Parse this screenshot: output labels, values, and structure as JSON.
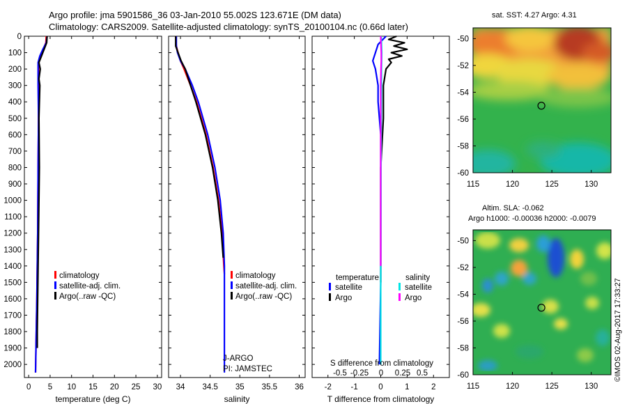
{
  "title": {
    "line1": "Argo profile: jma 5901586_36 03-Jan-2010 55.002S 123.671E (DM data)",
    "line2": "Climatology: CARS2009. Satellite-adjusted climatology: synTS_20100104.nc (0.66d later)"
  },
  "colors": {
    "climatology": "#ff0000",
    "satellite": "#0000ff",
    "argo": "#000000",
    "sal_satellite": "#00e5e5",
    "sal_argo": "#ff00ff"
  },
  "chart_data": [
    {
      "type": "line",
      "name": "temperature-profile",
      "xlabel": "temperature (deg C)",
      "ylabel": "",
      "xlim": [
        -1,
        31
      ],
      "ylim": [
        2080,
        0
      ],
      "xticks": [
        "0",
        "5",
        "10",
        "15",
        "20",
        "25",
        "30"
      ],
      "yticks": [
        "0",
        "100",
        "200",
        "300",
        "400",
        "500",
        "600",
        "700",
        "800",
        "900",
        "1000",
        "1100",
        "1200",
        "1300",
        "1400",
        "1500",
        "1600",
        "1700",
        "1800",
        "1900",
        "2000"
      ],
      "series": [
        {
          "name": "climatology",
          "depth": [
            0,
            40,
            80,
            120,
            160,
            200,
            300,
            500,
            800,
            1200,
            1600,
            2050
          ],
          "values": [
            4.1,
            4.0,
            3.4,
            2.8,
            2.4,
            2.3,
            2.3,
            2.3,
            2.2,
            2.1,
            1.9,
            1.6
          ]
        },
        {
          "name": "satellite-adj. clim.",
          "depth": [
            0,
            40,
            80,
            120,
            160,
            200,
            300,
            500,
            800,
            1200,
            1600,
            2050
          ],
          "values": [
            4.3,
            4.1,
            3.3,
            2.6,
            2.2,
            2.2,
            2.2,
            2.3,
            2.2,
            2.1,
            1.9,
            1.6
          ]
        },
        {
          "name": "Argo(..raw -QC)",
          "depth": [
            0,
            40,
            80,
            120,
            160,
            200,
            260,
            300,
            500,
            800,
            1000,
            1200,
            1400,
            1600,
            1800,
            1900
          ],
          "values": [
            4.3,
            4.2,
            3.6,
            3.0,
            2.4,
            2.7,
            2.4,
            2.6,
            2.4,
            2.5,
            2.4,
            2.3,
            2.2,
            2.1,
            2.0,
            2.0
          ]
        }
      ],
      "legend": [
        "climatology",
        "satellite-adj. clim.",
        "Argo(..raw -QC)"
      ]
    },
    {
      "type": "line",
      "name": "salinity-profile",
      "xlabel": "salinity",
      "xlim": [
        33.8,
        36.1
      ],
      "ylim": [
        2080,
        0
      ],
      "xticks": [
        "34",
        "34.5",
        "35",
        "35.5",
        "36"
      ],
      "series": [
        {
          "name": "climatology",
          "depth": [
            0,
            60,
            100,
            150,
            200,
            300,
            400,
            600,
            800,
            1000,
            1200,
            1400,
            1450
          ],
          "values": [
            33.92,
            33.93,
            33.96,
            34.0,
            34.06,
            34.17,
            34.27,
            34.43,
            34.55,
            34.64,
            34.7,
            34.73,
            34.74
          ]
        },
        {
          "name": "satellite-adj. clim.",
          "depth": [
            0,
            60,
            100,
            150,
            200,
            300,
            400,
            600,
            800,
            1000,
            1200,
            1400,
            1600,
            2050
          ],
          "values": [
            33.93,
            33.93,
            33.95,
            34.0,
            34.08,
            34.2,
            34.3,
            34.46,
            34.58,
            34.67,
            34.72,
            34.74,
            34.74,
            34.74
          ]
        },
        {
          "name": "Argo(..raw -QC)",
          "depth": [
            0,
            60,
            100,
            150,
            200,
            300,
            400,
            600,
            800,
            1000,
            1200,
            1350
          ],
          "values": [
            33.92,
            33.92,
            33.96,
            34.01,
            34.08,
            34.17,
            34.26,
            34.42,
            34.54,
            34.63,
            34.69,
            34.72
          ]
        }
      ],
      "annotation": [
        "J-ARGO",
        "PI: JAMSTEC"
      ],
      "legend": [
        "climatology",
        "satellite-adj. clim.",
        "Argo(..raw -QC)"
      ]
    },
    {
      "type": "line",
      "name": "difference-profile",
      "xlabel": "T difference from climatology",
      "xlabel_top": "S difference from climatology",
      "xlim": [
        -2.6,
        2.6
      ],
      "ylim": [
        2080,
        0
      ],
      "xticks": [
        "-2",
        "-1",
        "0",
        "1",
        "2"
      ],
      "xticks_top": [
        "-0.5",
        "-0.25",
        "0",
        "0.25",
        "0.5"
      ],
      "series": [
        {
          "name": "temperature satellite",
          "depth": [
            0,
            50,
            100,
            150,
            200,
            300,
            400,
            600,
            800,
            1000,
            1500,
            2000
          ],
          "values": [
            0.2,
            -0.1,
            -0.2,
            -0.3,
            -0.2,
            -0.1,
            -0.1,
            0.0,
            0.0,
            0.0,
            0.0,
            -0.05
          ]
        },
        {
          "name": "temperature Argo",
          "depth": [
            0,
            20,
            40,
            60,
            80,
            100,
            120,
            140,
            160,
            200,
            300,
            500,
            800,
            1000,
            1500
          ],
          "values": [
            0.6,
            0.3,
            0.9,
            0.5,
            1.0,
            0.4,
            0.8,
            0.3,
            0.4,
            0.2,
            0.1,
            0.1,
            0.0,
            0.0,
            0.0
          ]
        },
        {
          "name": "salinity satellite",
          "depth": [
            0,
            100,
            200,
            300,
            500,
            800,
            1000,
            1500,
            2000
          ],
          "values": [
            0.02,
            0.04,
            0.03,
            0.03,
            0.02,
            0.01,
            0.01,
            0.0,
            0.0
          ]
        },
        {
          "name": "salinity Argo",
          "depth": [
            0,
            60,
            100,
            150,
            200,
            300,
            500,
            800,
            1000,
            1400
          ],
          "values": [
            0.0,
            0.01,
            0.02,
            0.02,
            0.01,
            0.0,
            0.0,
            0.0,
            0.0,
            0.0
          ]
        }
      ],
      "legend": {
        "temperature_header": "temperature",
        "salinity_header": "salinity",
        "satellite": "satellite",
        "argo": "Argo"
      }
    },
    {
      "type": "heatmap",
      "name": "sst-map",
      "title": "sat. SST: 4.27 Argo: 4.31",
      "xticks": [
        "115",
        "120",
        "125",
        "130"
      ],
      "yticks": [
        "-50",
        "-52",
        "-54",
        "-56",
        "-58",
        "-60"
      ],
      "xlim": [
        115,
        132.5
      ],
      "ylim": [
        -60,
        -49.2
      ],
      "marker": {
        "lon": 123.671,
        "lat": -55.002
      }
    },
    {
      "type": "heatmap",
      "name": "sla-map",
      "title": "Altim. SLA: -0.062",
      "subtitle": "Argo h1000: -0.00036 h2000: -0.0079",
      "xticks": [
        "115",
        "120",
        "125",
        "130"
      ],
      "yticks": [
        "-50",
        "-52",
        "-54",
        "-56",
        "-58",
        "-60"
      ],
      "xlim": [
        115,
        132.5
      ],
      "ylim": [
        -60,
        -49.2
      ],
      "marker": {
        "lon": 123.671,
        "lat": -55.002
      }
    }
  ],
  "credit": "©IMOS 02-Aug-2017 17:33:27"
}
